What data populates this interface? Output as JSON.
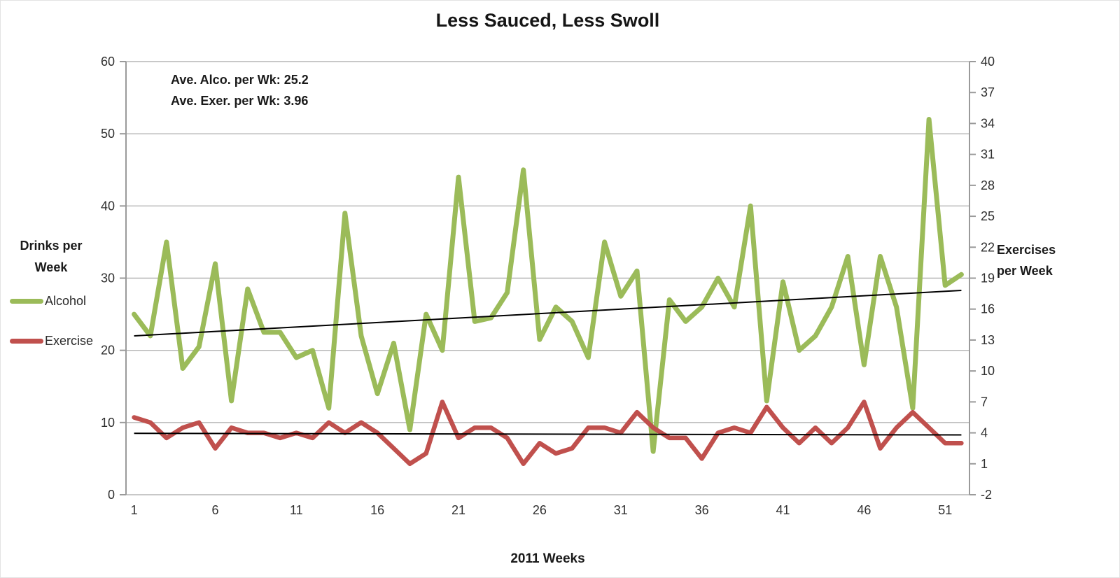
{
  "title": "Less Sauced, Less Swoll",
  "annotations": {
    "alcohol_avg": "Ave. Alco. per Wk: 25.2",
    "exercise_avg": "Ave. Exer. per Wk: 3.96"
  },
  "left_axis_title": {
    "line1": "Drinks per",
    "line2": "Week"
  },
  "right_axis_title": {
    "line1": "Exercises",
    "line2": "per Week"
  },
  "x_axis_title": "2011 Weeks",
  "legend": [
    {
      "label": "Alcohol",
      "color": "#9bbb59"
    },
    {
      "label": "Exercise",
      "color": "#c0504d"
    }
  ],
  "colors": {
    "alcohol": "#9bbb59",
    "exercise": "#c0504d",
    "trendline": "#000000",
    "gridline": "#b5b5b5",
    "axis": "#9a9a9a",
    "tick_text": "#2f2f2f"
  },
  "chart_data": {
    "type": "line",
    "title": "Less Sauced, Less Swoll",
    "xlabel": "2011 Weeks",
    "x": [
      1,
      2,
      3,
      4,
      5,
      6,
      7,
      8,
      9,
      10,
      11,
      12,
      13,
      14,
      15,
      16,
      17,
      18,
      19,
      20,
      21,
      22,
      23,
      24,
      25,
      26,
      27,
      28,
      29,
      30,
      31,
      32,
      33,
      34,
      35,
      36,
      37,
      38,
      39,
      40,
      41,
      42,
      43,
      44,
      45,
      46,
      47,
      48,
      49,
      50,
      51,
      52
    ],
    "x_tick_labels": [
      1,
      6,
      11,
      16,
      21,
      26,
      31,
      36,
      41,
      46,
      51
    ],
    "left_axis": {
      "label": "Drinks per Week",
      "min": 0,
      "max": 60,
      "step": 10
    },
    "right_axis": {
      "label": "Exercises per Week",
      "min": -2,
      "max": 40,
      "step": 3
    },
    "grid": true,
    "legend_position": "left",
    "series": [
      {
        "name": "Alcohol",
        "axis": "left",
        "average": 25.2,
        "values": [
          25,
          22,
          35,
          17.5,
          20.5,
          32,
          13,
          28.5,
          22.5,
          22.5,
          19,
          20,
          12,
          39,
          22,
          14,
          21,
          9,
          25,
          20,
          44,
          24,
          24.5,
          28,
          45,
          21.5,
          26,
          24,
          19,
          35,
          27.5,
          31,
          6,
          27,
          24,
          26,
          30,
          26,
          40,
          13,
          29.5,
          20,
          22,
          26,
          33,
          18,
          33,
          26,
          12,
          52,
          29,
          30.5
        ]
      },
      {
        "name": "Exercise",
        "axis": "right",
        "average": 3.96,
        "values": [
          5.5,
          5,
          3.5,
          4.5,
          5,
          2.5,
          4.5,
          4,
          4,
          3.5,
          4,
          3.5,
          5,
          4,
          5,
          4,
          2.5,
          1,
          2,
          7,
          3.5,
          4.5,
          4.5,
          3.5,
          1,
          3,
          2,
          2.5,
          4.5,
          4.5,
          4,
          6,
          4.5,
          3.5,
          3.5,
          1.5,
          4,
          4.5,
          4,
          6.5,
          4.5,
          3,
          4.5,
          3,
          4.5,
          7,
          2.5,
          4.5,
          6,
          4.5,
          3,
          3
        ]
      }
    ],
    "trendlines": [
      {
        "series": "Alcohol",
        "axis": "left",
        "start": 22.0,
        "end": 28.3
      },
      {
        "series": "Exercise",
        "axis": "right",
        "start": 3.95,
        "end": 3.8
      }
    ]
  }
}
